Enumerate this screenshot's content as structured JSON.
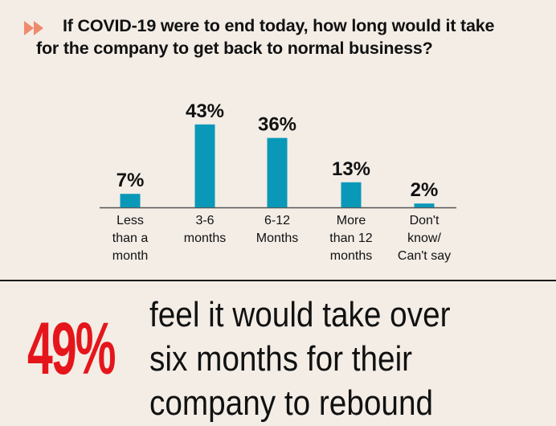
{
  "title": {
    "line1": "If COVID-19 were to end today, how long would it take",
    "line2": "for the company to get back to normal business?",
    "icon": "double-chevron-right-icon",
    "icon_color": "#f08a6e"
  },
  "chart_data": {
    "type": "bar",
    "categories": [
      [
        "Less",
        "than a",
        "month"
      ],
      [
        "3-6",
        "months"
      ],
      [
        "6-12",
        "Months"
      ],
      [
        "More",
        "than 12",
        "months"
      ],
      [
        "Don't",
        "know/",
        "Can't say"
      ]
    ],
    "values": [
      7,
      43,
      36,
      13,
      2
    ],
    "value_labels": [
      "7%",
      "43%",
      "36%",
      "13%",
      "2%"
    ],
    "bar_color": "#0a98b8",
    "ylim": [
      0,
      50
    ],
    "grid": false,
    "legend": "none"
  },
  "headline": {
    "value": "49%",
    "value_color": "#e5161b",
    "text_lines": [
      "feel it would take over",
      "six months for their",
      "company to rebound"
    ]
  }
}
